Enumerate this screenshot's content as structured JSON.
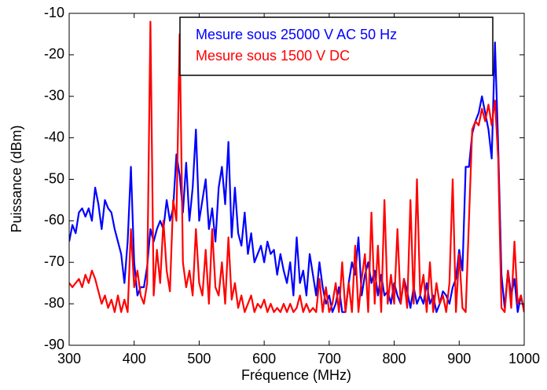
{
  "chart_data": {
    "type": "line",
    "x_label": "Fréquence (MHz)",
    "y_label": "Puissance (dBm)",
    "xlim": [
      300,
      1000
    ],
    "xticks": [
      300,
      400,
      500,
      600,
      700,
      800,
      900,
      1000
    ],
    "ylim": [
      -90,
      -10
    ],
    "yticks": [
      -90,
      -80,
      -70,
      -60,
      -50,
      -40,
      -30,
      -20,
      -10
    ],
    "legend": "top-right",
    "x": [
      300,
      305,
      310,
      315,
      320,
      325,
      330,
      335,
      340,
      345,
      350,
      355,
      360,
      365,
      370,
      375,
      380,
      385,
      390,
      395,
      400,
      405,
      410,
      415,
      420,
      425,
      430,
      435,
      440,
      445,
      450,
      455,
      460,
      465,
      470,
      475,
      480,
      485,
      490,
      495,
      500,
      505,
      510,
      515,
      520,
      525,
      530,
      535,
      540,
      545,
      550,
      555,
      560,
      565,
      570,
      575,
      580,
      585,
      590,
      595,
      600,
      605,
      610,
      615,
      620,
      625,
      630,
      635,
      640,
      645,
      650,
      655,
      660,
      665,
      670,
      675,
      680,
      685,
      690,
      695,
      700,
      705,
      710,
      715,
      720,
      725,
      730,
      735,
      740,
      745,
      750,
      755,
      760,
      765,
      770,
      775,
      780,
      785,
      790,
      795,
      800,
      805,
      810,
      815,
      820,
      825,
      830,
      835,
      840,
      845,
      850,
      855,
      860,
      865,
      870,
      875,
      880,
      885,
      890,
      895,
      900,
      905,
      910,
      915,
      920,
      925,
      930,
      935,
      940,
      945,
      950,
      955,
      960,
      965,
      970,
      975,
      980,
      985,
      990,
      995,
      1000
    ],
    "series": [
      {
        "name": "Mesure sous 25000 V AC 50 Hz",
        "color": "#0000ff",
        "values": [
          -65,
          -61,
          -63,
          -58,
          -57,
          -59,
          -57,
          -60,
          -52,
          -56,
          -62,
          -55,
          -57,
          -58,
          -62,
          -65,
          -68,
          -75,
          -65,
          -47,
          -70,
          -78,
          -76,
          -76,
          -71,
          -62,
          -65,
          -62,
          -60,
          -62,
          -55,
          -60,
          -57,
          -44,
          -49,
          -58,
          -46,
          -60,
          -52,
          -38,
          -60,
          -55,
          -50,
          -62,
          -57,
          -65,
          -52,
          -47,
          -56,
          -41,
          -64,
          -52,
          -63,
          -66,
          -58,
          -68,
          -63,
          -70,
          -68,
          -66,
          -70,
          -65,
          -68,
          -67,
          -73,
          -68,
          -72,
          -75,
          -70,
          -78,
          -64,
          -75,
          -72,
          -78,
          -68,
          -73,
          -78,
          -70,
          -76,
          -80,
          -78,
          -82,
          -80,
          -76,
          -82,
          -82,
          -75,
          -70,
          -73,
          -64,
          -78,
          -73,
          -70,
          -75,
          -72,
          -78,
          -73,
          -78,
          -77,
          -80,
          -75,
          -78,
          -80,
          -74,
          -77,
          -81,
          -76,
          -80,
          -78,
          -80,
          -75,
          -80,
          -78,
          -82,
          -80,
          -77,
          -78,
          -80,
          -76,
          -74,
          -67,
          -72,
          -47,
          -47,
          -39,
          -36,
          -34,
          -30,
          -34,
          -38,
          -45,
          -17,
          -42,
          -73,
          -81,
          -72,
          -78,
          -74,
          -82,
          -78,
          -82
        ]
      },
      {
        "name": "Mesure sous 1500 V DC",
        "color": "#ff0000",
        "values": [
          -75,
          -76,
          -75,
          -74,
          -76,
          -73,
          -75,
          -72,
          -74,
          -77,
          -80,
          -78,
          -81,
          -79,
          -82,
          -78,
          -82,
          -79,
          -82,
          -62,
          -76,
          -72,
          -78,
          -80,
          -75,
          -12,
          -78,
          -67,
          -75,
          -60,
          -72,
          -77,
          -55,
          -60,
          -15,
          -70,
          -76,
          -72,
          -78,
          -62,
          -75,
          -78,
          -67,
          -80,
          -62,
          -76,
          -78,
          -70,
          -80,
          -64,
          -79,
          -75,
          -81,
          -78,
          -82,
          -80,
          -78,
          -82,
          -80,
          -81,
          -79,
          -82,
          -80,
          -82,
          -81,
          -82,
          -80,
          -82,
          -80,
          -82,
          -81,
          -78,
          -82,
          -80,
          -82,
          -81,
          -82,
          -74,
          -82,
          -76,
          -82,
          -80,
          -75,
          -82,
          -70,
          -82,
          -75,
          -82,
          -66,
          -82,
          -74,
          -68,
          -82,
          -58,
          -80,
          -66,
          -82,
          -55,
          -80,
          -73,
          -80,
          -62,
          -80,
          -74,
          -81,
          -55,
          -80,
          -50,
          -78,
          -73,
          -82,
          -70,
          -82,
          -75,
          -80,
          -78,
          -82,
          -75,
          -50,
          -82,
          -68,
          -81,
          -82,
          -60,
          -38,
          -36,
          -37,
          -33,
          -36,
          -32,
          -37,
          -31,
          -45,
          -81,
          -82,
          -72,
          -81,
          -65,
          -80,
          -78,
          -82
        ]
      }
    ]
  }
}
